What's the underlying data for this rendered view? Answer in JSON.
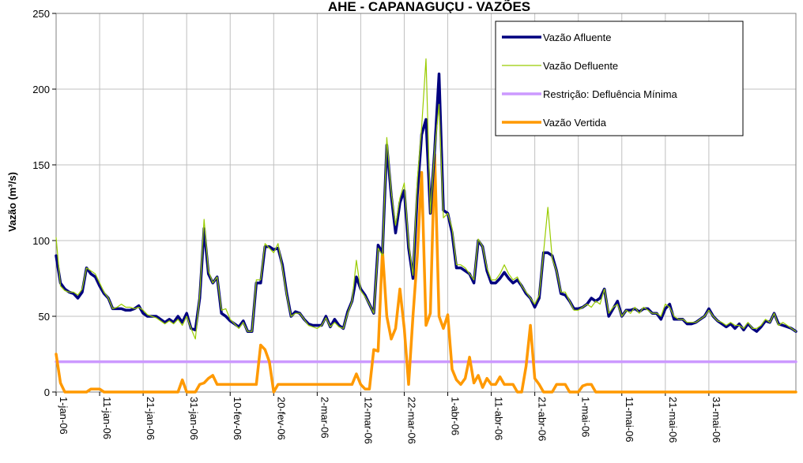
{
  "chart_data": {
    "type": "line",
    "title": "AHE - CAPANAGUÇU - VAZÕES",
    "ylabel": "Vazão (m³/s)",
    "xlabel": "",
    "ylim": [
      0,
      250
    ],
    "yticks": [
      0,
      50,
      100,
      150,
      200,
      250
    ],
    "grid": true,
    "legend_position": "top-right",
    "x_tick_labels": [
      "1-jan-06",
      "11-jan-06",
      "21-jan-06",
      "31-jan-06",
      "10-fev-06",
      "20-fev-06",
      "2-mar-06",
      "12-mar-06",
      "22-mar-06",
      "1-abr-06",
      "11-abr-06",
      "21-abr-06",
      "1-mai-06",
      "11-mai-06",
      "21-mai-06",
      "31-mai-06"
    ],
    "x_dates": [
      "2006-01-01",
      "2006-01-11",
      "2006-01-21",
      "2006-01-31",
      "2006-02-10",
      "2006-02-20",
      "2006-03-02",
      "2006-03-12",
      "2006-03-22",
      "2006-04-01",
      "2006-04-11",
      "2006-04-21",
      "2006-05-01",
      "2006-05-11",
      "2006-05-21",
      "2006-05-31"
    ],
    "series": [
      {
        "name": "Vazão Afluente",
        "color": "#00007f",
        "width": 3.5,
        "start_date": "2006-01-01",
        "values": [
          90,
          72,
          68,
          66,
          65,
          62,
          66,
          82,
          78,
          76,
          70,
          65,
          62,
          55,
          55,
          55,
          54,
          54,
          55,
          57,
          52,
          50,
          50,
          50,
          48,
          46,
          48,
          46,
          50,
          46,
          52,
          42,
          41,
          62,
          108,
          78,
          72,
          76,
          52,
          50,
          47,
          45,
          43,
          47,
          40,
          40,
          72,
          72,
          96,
          96,
          94,
          95,
          84,
          65,
          50,
          53,
          52,
          48,
          45,
          44,
          44,
          44,
          50,
          43,
          48,
          44,
          42,
          53,
          60,
          76,
          68,
          64,
          58,
          52,
          97,
          92,
          163,
          130,
          105,
          125,
          133,
          95,
          75,
          130,
          170,
          180,
          118,
          160,
          210,
          120,
          118,
          105,
          82,
          82,
          80,
          78,
          72,
          100,
          96,
          80,
          72,
          72,
          75,
          79,
          75,
          72,
          74,
          70,
          65,
          62,
          56,
          62,
          92,
          92,
          90,
          80,
          65,
          64,
          60,
          55,
          55,
          56,
          58,
          62,
          60,
          62,
          68,
          50,
          55,
          60,
          50,
          54,
          54,
          55,
          53,
          55,
          55,
          52,
          52,
          48,
          55,
          58,
          48,
          48,
          48,
          45,
          45,
          46,
          48,
          50,
          55,
          50,
          47,
          45,
          43,
          45,
          42,
          45,
          41,
          45,
          42,
          40,
          43,
          47,
          46,
          52,
          45,
          44,
          43,
          42,
          40
        ]
      },
      {
        "name": "Vazão Defluente",
        "color": "#99cc00",
        "width": 1.2,
        "start_date": "2006-01-01",
        "values": [
          102,
          70,
          67,
          66,
          66,
          64,
          68,
          82,
          80,
          78,
          72,
          66,
          62,
          55,
          56,
          58,
          56,
          56,
          55,
          56,
          54,
          51,
          50,
          49,
          47,
          45,
          47,
          45,
          48,
          44,
          50,
          42,
          35,
          64,
          114,
          80,
          72,
          76,
          54,
          55,
          48,
          45,
          42,
          46,
          40,
          40,
          74,
          74,
          98,
          95,
          92,
          98,
          82,
          64,
          50,
          52,
          52,
          48,
          44,
          43,
          42,
          44,
          49,
          43,
          46,
          43,
          42,
          52,
          60,
          87,
          67,
          63,
          58,
          52,
          95,
          90,
          168,
          132,
          110,
          128,
          138,
          98,
          77,
          140,
          175,
          220,
          118,
          160,
          190,
          115,
          118,
          108,
          84,
          84,
          82,
          78,
          74,
          101,
          96,
          82,
          74,
          74,
          78,
          84,
          78,
          74,
          76,
          70,
          66,
          62,
          58,
          64,
          92,
          122,
          88,
          80,
          66,
          66,
          60,
          54,
          54,
          56,
          58,
          56,
          60,
          58,
          68,
          52,
          56,
          58,
          50,
          54,
          52,
          56,
          52,
          56,
          54,
          52,
          52,
          50,
          58,
          56,
          50,
          48,
          48,
          46,
          46,
          46,
          48,
          50,
          54,
          50,
          47,
          46,
          44,
          46,
          44,
          44,
          42,
          46,
          42,
          42,
          44,
          48,
          46,
          52,
          44,
          46,
          44,
          42,
          40
        ]
      },
      {
        "name": "Restrição: Defluência Mínima",
        "color": "#cc99ff",
        "width": 3.5,
        "start_date": "2006-01-01",
        "values": [
          20,
          20,
          20,
          20,
          20,
          20,
          20,
          20,
          20,
          20,
          20,
          20,
          20,
          20,
          20,
          20,
          20,
          20,
          20,
          20,
          20,
          20,
          20,
          20,
          20,
          20,
          20,
          20,
          20,
          20,
          20,
          20,
          20,
          20,
          20,
          20,
          20,
          20,
          20,
          20,
          20,
          20,
          20,
          20,
          20,
          20,
          20,
          20,
          20,
          20,
          20,
          20,
          20,
          20,
          20,
          20,
          20,
          20,
          20,
          20,
          20,
          20,
          20,
          20,
          20,
          20,
          20,
          20,
          20,
          20,
          20,
          20,
          20,
          20,
          20,
          20,
          20,
          20,
          20,
          20,
          20,
          20,
          20,
          20,
          20,
          20,
          20,
          20,
          20,
          20,
          20,
          20,
          20,
          20,
          20,
          20,
          20,
          20,
          20,
          20,
          20,
          20,
          20,
          20,
          20,
          20,
          20,
          20,
          20,
          20,
          20,
          20,
          20,
          20,
          20,
          20,
          20,
          20,
          20,
          20,
          20,
          20,
          20,
          20,
          20,
          20,
          20,
          20,
          20,
          20,
          20,
          20,
          20,
          20,
          20,
          20,
          20,
          20,
          20,
          20,
          20,
          20,
          20,
          20,
          20,
          20,
          20,
          20,
          20,
          20,
          20,
          20,
          20,
          20,
          20,
          20,
          20,
          20,
          20,
          20,
          20,
          20,
          20,
          20,
          20,
          20,
          20,
          20,
          20,
          20,
          20
        ]
      },
      {
        "name": "Vazão Vertida",
        "color": "#ff9900",
        "width": 3.5,
        "start_date": "2006-01-01",
        "values": [
          25,
          6,
          0,
          0,
          0,
          0,
          0,
          0,
          2,
          2,
          2,
          0,
          0,
          0,
          0,
          0,
          0,
          0,
          0,
          0,
          0,
          0,
          0,
          0,
          0,
          0,
          0,
          0,
          0,
          8,
          0,
          0,
          0,
          5,
          6,
          9,
          11,
          5,
          5,
          5,
          5,
          5,
          5,
          5,
          5,
          5,
          5,
          31,
          28,
          20,
          0,
          5,
          5,
          5,
          5,
          5,
          5,
          5,
          5,
          5,
          5,
          5,
          5,
          5,
          5,
          5,
          5,
          5,
          5,
          12,
          5,
          2,
          2,
          28,
          27,
          94,
          50,
          35,
          42,
          68,
          42,
          5,
          50,
          90,
          145,
          44,
          52,
          157,
          50,
          42,
          51,
          15,
          8,
          5,
          9,
          23,
          6,
          11,
          3,
          9,
          5,
          5,
          10,
          5,
          5,
          5,
          0,
          0,
          17,
          44,
          9,
          5,
          0,
          0,
          0,
          5,
          5,
          5,
          0,
          0,
          0,
          4,
          5,
          5,
          0,
          0,
          0,
          0,
          0,
          0,
          0,
          0,
          0,
          0,
          0,
          0,
          0,
          0,
          0,
          0,
          0,
          0,
          0,
          0,
          0,
          0,
          0,
          0,
          0,
          0,
          0,
          0,
          0,
          0,
          0,
          0,
          0,
          0,
          0,
          0,
          0,
          0,
          0,
          0,
          0,
          0,
          0,
          0,
          0,
          0,
          0
        ]
      }
    ]
  }
}
